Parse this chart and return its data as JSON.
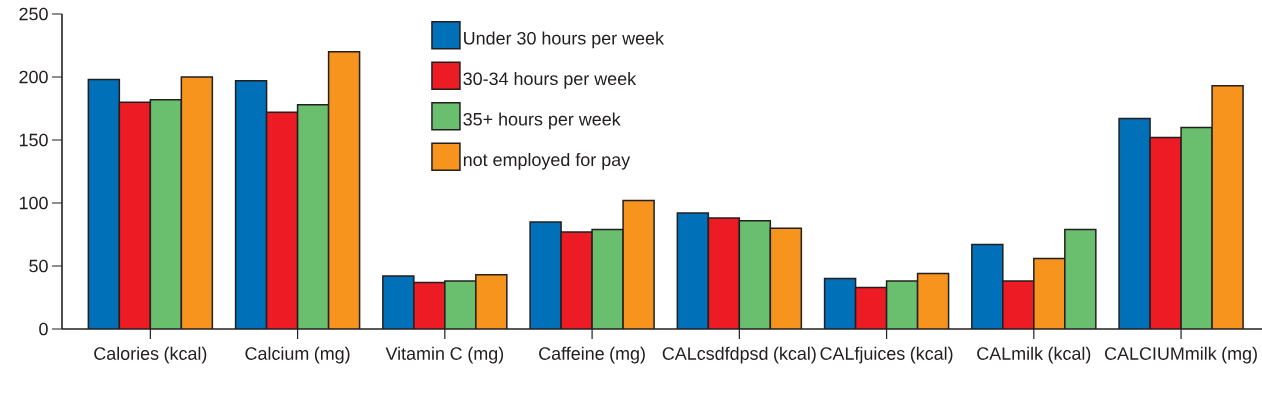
{
  "chart_data": {
    "type": "bar",
    "categories": [
      "Calories (kcal)",
      "Calcium (mg)",
      "Vitamin C (mg)",
      "Caffeine (mg)",
      "CALcsdfdpsd (kcal)",
      "CALfjuices (kcal)",
      "CALmilk (kcal)",
      "CALCIUMmilk (mg)"
    ],
    "series": [
      {
        "name": "Under 30 hours per week",
        "color": "#0070b8",
        "values": [
          198,
          197,
          42,
          85,
          92,
          40,
          67,
          167
        ]
      },
      {
        "name": "30-34 hours per week",
        "color": "#ed1c24",
        "values": [
          180,
          172,
          37,
          77,
          88,
          33,
          38,
          152
        ]
      },
      {
        "name": "35+ hours per week",
        "color": "#6abf6f",
        "colors": [
          "#6abf6f",
          "#6abf6f",
          "#6abf6f",
          "#6abf6f",
          "#6abf6f",
          "#6abf6f",
          "#f7941d",
          "#6abf6f"
        ],
        "values": [
          182,
          178,
          38,
          79,
          86,
          38,
          56,
          160
        ]
      },
      {
        "name": "not employed for pay",
        "color": "#f7941d",
        "colors": [
          "#f7941d",
          "#f7941d",
          "#f7941d",
          "#f7941d",
          "#f7941d",
          "#f7941d",
          "#6abf6f",
          "#f7941d"
        ],
        "values": [
          200,
          220,
          43,
          102,
          80,
          44,
          79,
          193
        ]
      }
    ],
    "ylim": [
      0,
      250
    ],
    "yticks": [
      0,
      50,
      100,
      150,
      200,
      250
    ],
    "legend": "top"
  }
}
